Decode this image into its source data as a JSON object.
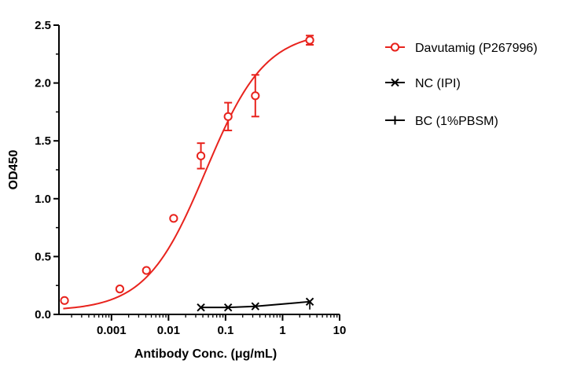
{
  "chart_data": {
    "type": "scatter",
    "xlabel": "Antibody Conc. (μg/mL)",
    "ylabel": "OD450",
    "xscale": "log",
    "xlim": [
      0.00012,
      10
    ],
    "ylim": [
      0,
      2.5
    ],
    "x_ticks": [
      0.001,
      0.01,
      0.1,
      1,
      10
    ],
    "x_tick_labels": [
      "0.001",
      "0.01",
      "0.1",
      "1",
      "10"
    ],
    "y_ticks": [
      0,
      0.5,
      1.0,
      1.5,
      2.0,
      2.5
    ],
    "y_tick_labels": [
      "0.0",
      "0.5",
      "1.0",
      "1.5",
      "2.0",
      "2.5"
    ],
    "grid": false,
    "legend_position": "right",
    "series": [
      {
        "name": "Davutamig (P267996)",
        "color": "#e8231d",
        "marker": "circle",
        "fit": "sigmoidal-4pl",
        "fit_params": {
          "bottom": 0.03,
          "top": 2.45,
          "ec50": 0.045,
          "hill": 0.83
        },
        "x": [
          0.00015,
          0.0014,
          0.0041,
          0.0123,
          0.037,
          0.111,
          0.333,
          3.0
        ],
        "y": [
          0.12,
          0.22,
          0.38,
          0.83,
          1.37,
          1.71,
          1.89,
          2.37
        ],
        "err": [
          0.0,
          0.0,
          0.0,
          0.0,
          0.11,
          0.12,
          0.18,
          0.04
        ]
      },
      {
        "name": "NC (IPI)",
        "color": "#000000",
        "marker": "x",
        "x": [
          0.037,
          0.111,
          0.333,
          3.0
        ],
        "y": [
          0.06,
          0.06,
          0.07,
          0.11
        ]
      },
      {
        "name": "BC (1%PBSM)",
        "color": "#000000",
        "marker": "plus",
        "x": [],
        "y": []
      }
    ]
  }
}
